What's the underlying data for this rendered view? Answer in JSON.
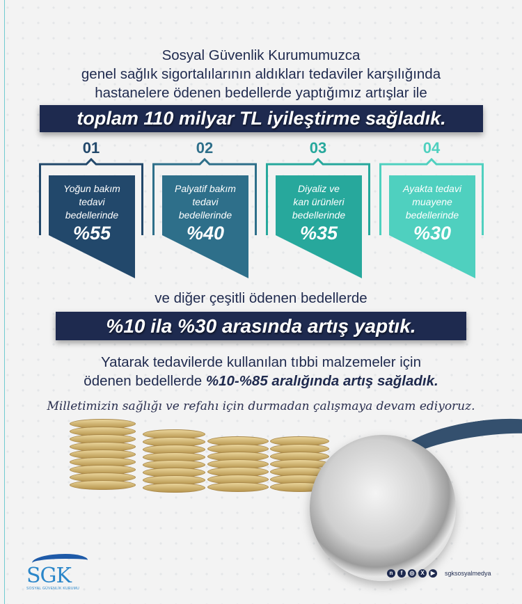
{
  "intro": {
    "line1": "Sosyal Güvenlik Kurumumuzca",
    "line2": "genel sağlık sigortalılarının aldıkları tedaviler karşılığında",
    "line3": "hastanelere ödenen bedellerde yaptığımız artışlar ile"
  },
  "headline": "toplam 110 milyar TL iyileştirme sağladık.",
  "cards": [
    {
      "number": "01",
      "line1": "Yoğun bakım",
      "line2": "tedavi",
      "line3": "bedellerinde",
      "percent": "%55",
      "color": "#22486b"
    },
    {
      "number": "02",
      "line1": "Palyatif bakım",
      "line2": "tedavi",
      "line3": "bedellerinde",
      "percent": "%40",
      "color": "#2e6f8a"
    },
    {
      "number": "03",
      "line1": "Diyaliz ve",
      "line2": "kan ürünleri",
      "line3": "bedellerinde",
      "percent": "%35",
      "color": "#27a89c"
    },
    {
      "number": "04",
      "line1": "Ayakta tedavi",
      "line2": "muayene",
      "line3": "bedellerinde",
      "percent": "%30",
      "color": "#4fd0bf"
    }
  ],
  "other": "ve diğer çeşitli ödenen bedellerde",
  "headline2": "%10 ila %30 arasında artış yaptık.",
  "inpatient": {
    "line1": "Yatarak tedavilerde kullanılan tıbbi malzemeler için",
    "line2_plain": "ödenen bedellerde ",
    "line2_bold": "%10-%85 aralığında artış sağladık."
  },
  "slogan": "Milletimizin sağlığı ve refahı için durmadan çalışmaya devam ediyoruz.",
  "footer": {
    "logo_text": "SGK",
    "logo_subtitle": "SOSYAL GÜVENLİK KURUMU",
    "social_icons": [
      "nsosyal-icon",
      "facebook-icon",
      "instagram-icon",
      "x-icon",
      "youtube-icon"
    ],
    "handle": "sgksosyalmedya"
  },
  "colors": {
    "navy": "#1e2a4f",
    "text": "#1f2a4e"
  }
}
